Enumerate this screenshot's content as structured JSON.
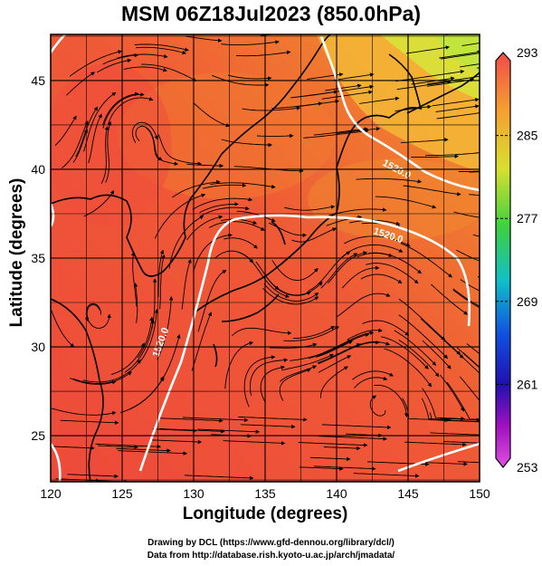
{
  "title": "MSM 06Z18Jul2023 (850.0hPa)",
  "xlabel": "Longitude (degrees)",
  "ylabel": "Latitude  (degrees)",
  "credits": {
    "line1": "Drawing by DCL (https://www.gfd-dennou.org/library/dcl/)",
    "line2": "Data from http://database.rish.kyoto-u.ac.jp/arch/jmadata/"
  },
  "map": {
    "lon_range": [
      120,
      150
    ],
    "lat_range": [
      22.4,
      47.6
    ],
    "lon_ticks": [
      "120",
      "125",
      "130",
      "135",
      "140",
      "145",
      "150"
    ],
    "lat_ticks": [
      "25",
      "30",
      "35",
      "40",
      "45"
    ],
    "contour_labels": [
      "1520.0",
      "1520.0",
      "1520.0"
    ],
    "colors": {
      "warm": "#ee4a3a",
      "mid": "#f27a2e",
      "cool": "#f0c838",
      "contour": "#ffffff",
      "coast": "#000000"
    }
  },
  "colorbar": {
    "labels": [
      "293",
      "285",
      "277",
      "269",
      "261",
      "253"
    ],
    "stops": [
      "#f24a4a",
      "#f5a030",
      "#d8e030",
      "#3ed040",
      "#10c0c8",
      "#1050e0",
      "#2010b0",
      "#a010c0",
      "#e050e0"
    ]
  }
}
